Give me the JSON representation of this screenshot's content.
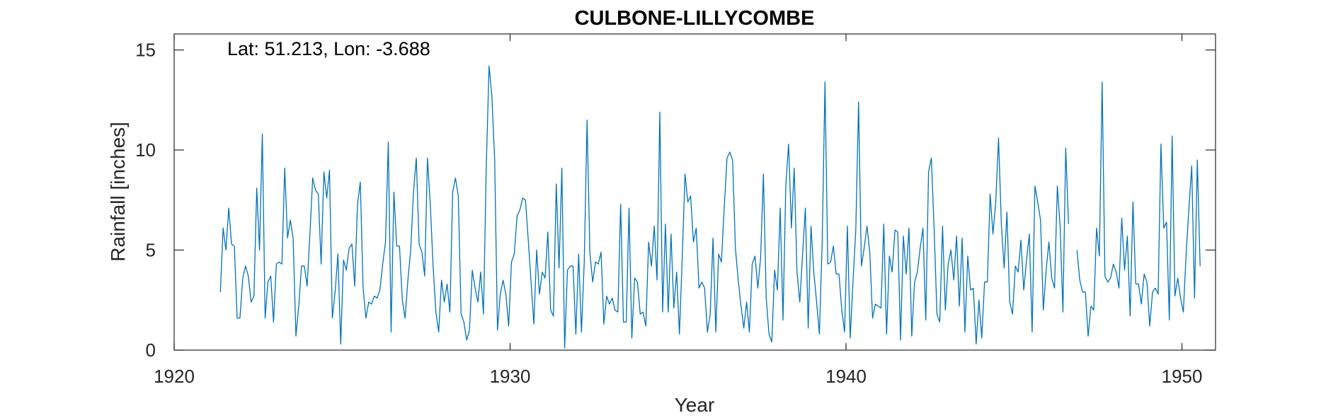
{
  "chart_data": {
    "type": "line",
    "title": "CULBONE-LILLYCOMBE",
    "annotation": "Lat: 51.213, Lon: -3.688",
    "xlabel": "Year",
    "ylabel": "Rainfall [inches]",
    "xlim": [
      1920,
      1951
    ],
    "ylim": [
      0,
      15.8
    ],
    "xticks": [
      1920,
      1930,
      1940,
      1950
    ],
    "yticks": [
      0,
      5,
      10,
      15
    ],
    "grid": false,
    "line_color": "#0072BD",
    "series": [
      {
        "x_start": 1921.375,
        "x_step": 0.08333,
        "values": [
          2.9,
          6.1,
          5.0,
          7.1,
          5.3,
          5.2,
          1.6,
          1.6,
          3.6,
          4.2,
          3.7,
          2.4,
          2.7,
          8.1,
          5.0,
          10.8,
          1.6,
          3.4,
          3.7,
          1.4,
          4.3,
          4.4,
          4.3,
          9.1,
          5.6,
          6.5,
          5.6,
          0.7,
          2.2,
          4.2,
          4.2,
          3.2,
          5.8,
          8.6,
          8.0,
          7.8,
          4.3,
          8.9,
          7.6,
          9.0,
          1.6,
          2.9,
          4.8,
          0.3,
          4.5,
          4.0,
          5.1,
          5.3,
          3.2,
          7.3,
          8.4,
          3.1,
          1.6,
          2.4,
          2.3,
          2.7,
          2.6,
          3.0,
          4.3,
          5.4,
          10.4,
          0.9,
          7.9,
          5.2,
          5.2,
          2.5,
          1.6,
          3.5,
          5.0,
          7.9,
          9.6,
          5.3,
          4.9,
          3.7,
          9.6,
          7.3,
          4.2,
          1.9,
          0.9,
          3.5,
          2.4,
          3.3,
          1.9,
          7.9,
          8.6,
          7.7,
          1.8,
          1.4,
          0.5,
          1.0,
          4.0,
          3.1,
          2.4,
          3.9,
          1.8,
          9.2,
          14.2,
          12.7,
          9.5,
          1.0,
          2.8,
          3.5,
          2.8,
          1.2,
          4.4,
          4.8,
          6.7,
          7.0,
          7.6,
          7.5,
          5.5,
          3.4,
          1.3,
          5.0,
          2.8,
          3.9,
          3.6,
          5.9,
          2.0,
          1.7,
          8.3,
          4.1,
          9.1,
          0.1,
          4.0,
          4.2,
          4.2,
          0.8,
          4.8,
          0.9,
          4.4,
          11.5,
          4.9,
          3.4,
          4.4,
          4.3,
          4.9,
          1.3,
          2.7,
          2.3,
          2.6,
          2.0,
          1.9,
          7.3,
          1.4,
          1.4,
          7.1,
          0.6,
          3.6,
          3.4,
          1.8,
          1.9,
          1.2,
          5.4,
          4.2,
          6.2,
          3.5,
          11.9,
          1.9,
          6.3,
          1.9,
          5.8,
          2.1,
          3.9,
          0.8,
          4.6,
          8.8,
          7.4,
          7.7,
          5.4,
          6.1,
          3.1,
          3.4,
          3.1,
          0.9,
          1.8,
          5.6,
          0.9,
          4.8,
          4.4,
          7.1,
          9.6,
          9.9,
          9.5,
          5.1,
          3.5,
          2.2,
          1.1,
          2.4,
          0.9,
          4.3,
          4.7,
          3.1,
          4.6,
          8.8,
          2.6,
          0.8,
          0.4,
          4.0,
          3.0,
          7.1,
          1.5,
          8.2,
          10.3,
          6.1,
          9.1,
          3.9,
          2.4,
          4.8,
          7.1,
          1.1,
          6.2,
          3.9,
          2.4,
          0.8,
          5.4,
          13.4,
          4.3,
          4.4,
          5.2,
          3.8,
          3.8,
          2.0,
          0.9,
          6.2,
          0.6,
          3.4,
          6.0,
          12.4,
          4.2,
          5.1,
          6.2,
          4.9,
          1.6,
          2.3,
          2.2,
          2.1,
          6.3,
          0.8,
          4.7,
          3.9,
          6.0,
          5.9,
          0.5,
          5.7,
          3.8,
          6.1,
          0.7,
          3.4,
          3.9,
          5.1,
          6.1,
          1.5,
          8.9,
          9.6,
          6.0,
          1.8,
          1.4,
          6.2,
          2.0,
          4.3,
          5.0,
          3.5,
          5.7,
          2.2,
          5.6,
          0.9,
          4.7,
          3.0,
          3.1,
          0.3,
          2.5,
          0.6,
          3.4,
          3.4,
          7.8,
          5.8,
          7.4,
          10.6,
          6.3,
          4.1,
          6.9,
          2.4,
          1.8,
          4.2,
          3.9,
          5.5,
          3.0,
          4.5,
          5.8,
          0.9,
          8.2,
          7.4,
          6.5,
          2.0,
          4.0,
          5.4,
          3.6,
          3.1,
          8.2,
          6.2,
          1.9,
          10.1,
          6.3
        ]
      },
      {
        "x_start": 1946.875,
        "x_step": 0.08333,
        "values": [
          5.0,
          3.5,
          2.9,
          2.9,
          0.7,
          2.2,
          2.0,
          6.1,
          4.7,
          13.4,
          3.7,
          3.4,
          3.6,
          4.3,
          3.9,
          3.1,
          6.6,
          4.0,
          5.7,
          1.7,
          7.4,
          3.3,
          3.3,
          2.3,
          3.8,
          3.4,
          1.2,
          2.9,
          3.1,
          2.8,
          10.3,
          6.1,
          6.4,
          1.5,
          10.7,
          2.7,
          3.6,
          2.6,
          1.9,
          4.8,
          7.1,
          9.2,
          2.6,
          9.5,
          4.2
        ]
      }
    ]
  }
}
